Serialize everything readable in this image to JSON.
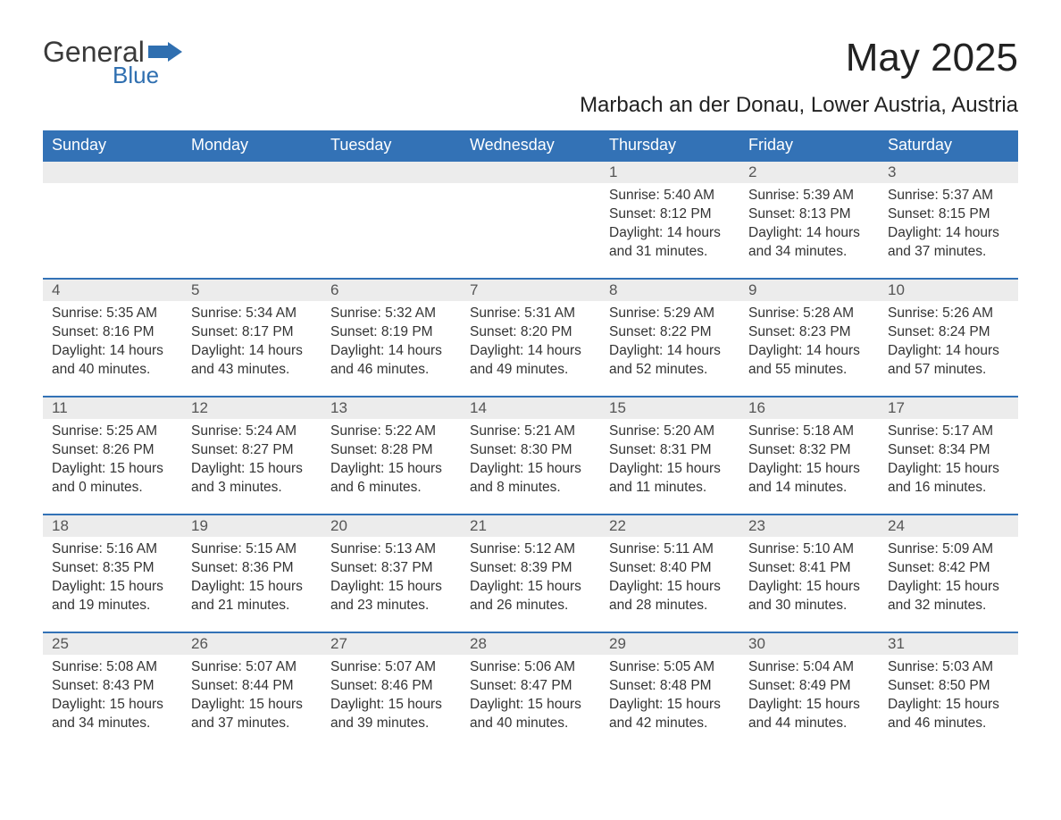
{
  "logo": {
    "text1": "General",
    "text2": "Blue",
    "flag_color": "#2f6fb0"
  },
  "title": "May 2025",
  "subtitle": "Marbach an der Donau, Lower Austria, Austria",
  "colors": {
    "header_bg": "#3372b6",
    "header_text": "#ffffff",
    "daynum_bg": "#ececec",
    "week_border": "#3372b6",
    "body_text": "#333333",
    "logo_blue": "#2f6fb0",
    "background": "#ffffff"
  },
  "layout": {
    "columns": 7,
    "rows": 5,
    "header_fontsize": 18,
    "daynum_fontsize": 17,
    "body_fontsize": 15.5,
    "title_fontsize": 44,
    "subtitle_fontsize": 24
  },
  "weekdays": [
    "Sunday",
    "Monday",
    "Tuesday",
    "Wednesday",
    "Thursday",
    "Friday",
    "Saturday"
  ],
  "weeks": [
    [
      {
        "n": "",
        "sr": "",
        "ss": "",
        "dl": ""
      },
      {
        "n": "",
        "sr": "",
        "ss": "",
        "dl": ""
      },
      {
        "n": "",
        "sr": "",
        "ss": "",
        "dl": ""
      },
      {
        "n": "",
        "sr": "",
        "ss": "",
        "dl": ""
      },
      {
        "n": "1",
        "sr": "Sunrise: 5:40 AM",
        "ss": "Sunset: 8:12 PM",
        "dl": "Daylight: 14 hours and 31 minutes."
      },
      {
        "n": "2",
        "sr": "Sunrise: 5:39 AM",
        "ss": "Sunset: 8:13 PM",
        "dl": "Daylight: 14 hours and 34 minutes."
      },
      {
        "n": "3",
        "sr": "Sunrise: 5:37 AM",
        "ss": "Sunset: 8:15 PM",
        "dl": "Daylight: 14 hours and 37 minutes."
      }
    ],
    [
      {
        "n": "4",
        "sr": "Sunrise: 5:35 AM",
        "ss": "Sunset: 8:16 PM",
        "dl": "Daylight: 14 hours and 40 minutes."
      },
      {
        "n": "5",
        "sr": "Sunrise: 5:34 AM",
        "ss": "Sunset: 8:17 PM",
        "dl": "Daylight: 14 hours and 43 minutes."
      },
      {
        "n": "6",
        "sr": "Sunrise: 5:32 AM",
        "ss": "Sunset: 8:19 PM",
        "dl": "Daylight: 14 hours and 46 minutes."
      },
      {
        "n": "7",
        "sr": "Sunrise: 5:31 AM",
        "ss": "Sunset: 8:20 PM",
        "dl": "Daylight: 14 hours and 49 minutes."
      },
      {
        "n": "8",
        "sr": "Sunrise: 5:29 AM",
        "ss": "Sunset: 8:22 PM",
        "dl": "Daylight: 14 hours and 52 minutes."
      },
      {
        "n": "9",
        "sr": "Sunrise: 5:28 AM",
        "ss": "Sunset: 8:23 PM",
        "dl": "Daylight: 14 hours and 55 minutes."
      },
      {
        "n": "10",
        "sr": "Sunrise: 5:26 AM",
        "ss": "Sunset: 8:24 PM",
        "dl": "Daylight: 14 hours and 57 minutes."
      }
    ],
    [
      {
        "n": "11",
        "sr": "Sunrise: 5:25 AM",
        "ss": "Sunset: 8:26 PM",
        "dl": "Daylight: 15 hours and 0 minutes."
      },
      {
        "n": "12",
        "sr": "Sunrise: 5:24 AM",
        "ss": "Sunset: 8:27 PM",
        "dl": "Daylight: 15 hours and 3 minutes."
      },
      {
        "n": "13",
        "sr": "Sunrise: 5:22 AM",
        "ss": "Sunset: 8:28 PM",
        "dl": "Daylight: 15 hours and 6 minutes."
      },
      {
        "n": "14",
        "sr": "Sunrise: 5:21 AM",
        "ss": "Sunset: 8:30 PM",
        "dl": "Daylight: 15 hours and 8 minutes."
      },
      {
        "n": "15",
        "sr": "Sunrise: 5:20 AM",
        "ss": "Sunset: 8:31 PM",
        "dl": "Daylight: 15 hours and 11 minutes."
      },
      {
        "n": "16",
        "sr": "Sunrise: 5:18 AM",
        "ss": "Sunset: 8:32 PM",
        "dl": "Daylight: 15 hours and 14 minutes."
      },
      {
        "n": "17",
        "sr": "Sunrise: 5:17 AM",
        "ss": "Sunset: 8:34 PM",
        "dl": "Daylight: 15 hours and 16 minutes."
      }
    ],
    [
      {
        "n": "18",
        "sr": "Sunrise: 5:16 AM",
        "ss": "Sunset: 8:35 PM",
        "dl": "Daylight: 15 hours and 19 minutes."
      },
      {
        "n": "19",
        "sr": "Sunrise: 5:15 AM",
        "ss": "Sunset: 8:36 PM",
        "dl": "Daylight: 15 hours and 21 minutes."
      },
      {
        "n": "20",
        "sr": "Sunrise: 5:13 AM",
        "ss": "Sunset: 8:37 PM",
        "dl": "Daylight: 15 hours and 23 minutes."
      },
      {
        "n": "21",
        "sr": "Sunrise: 5:12 AM",
        "ss": "Sunset: 8:39 PM",
        "dl": "Daylight: 15 hours and 26 minutes."
      },
      {
        "n": "22",
        "sr": "Sunrise: 5:11 AM",
        "ss": "Sunset: 8:40 PM",
        "dl": "Daylight: 15 hours and 28 minutes."
      },
      {
        "n": "23",
        "sr": "Sunrise: 5:10 AM",
        "ss": "Sunset: 8:41 PM",
        "dl": "Daylight: 15 hours and 30 minutes."
      },
      {
        "n": "24",
        "sr": "Sunrise: 5:09 AM",
        "ss": "Sunset: 8:42 PM",
        "dl": "Daylight: 15 hours and 32 minutes."
      }
    ],
    [
      {
        "n": "25",
        "sr": "Sunrise: 5:08 AM",
        "ss": "Sunset: 8:43 PM",
        "dl": "Daylight: 15 hours and 34 minutes."
      },
      {
        "n": "26",
        "sr": "Sunrise: 5:07 AM",
        "ss": "Sunset: 8:44 PM",
        "dl": "Daylight: 15 hours and 37 minutes."
      },
      {
        "n": "27",
        "sr": "Sunrise: 5:07 AM",
        "ss": "Sunset: 8:46 PM",
        "dl": "Daylight: 15 hours and 39 minutes."
      },
      {
        "n": "28",
        "sr": "Sunrise: 5:06 AM",
        "ss": "Sunset: 8:47 PM",
        "dl": "Daylight: 15 hours and 40 minutes."
      },
      {
        "n": "29",
        "sr": "Sunrise: 5:05 AM",
        "ss": "Sunset: 8:48 PM",
        "dl": "Daylight: 15 hours and 42 minutes."
      },
      {
        "n": "30",
        "sr": "Sunrise: 5:04 AM",
        "ss": "Sunset: 8:49 PM",
        "dl": "Daylight: 15 hours and 44 minutes."
      },
      {
        "n": "31",
        "sr": "Sunrise: 5:03 AM",
        "ss": "Sunset: 8:50 PM",
        "dl": "Daylight: 15 hours and 46 minutes."
      }
    ]
  ]
}
